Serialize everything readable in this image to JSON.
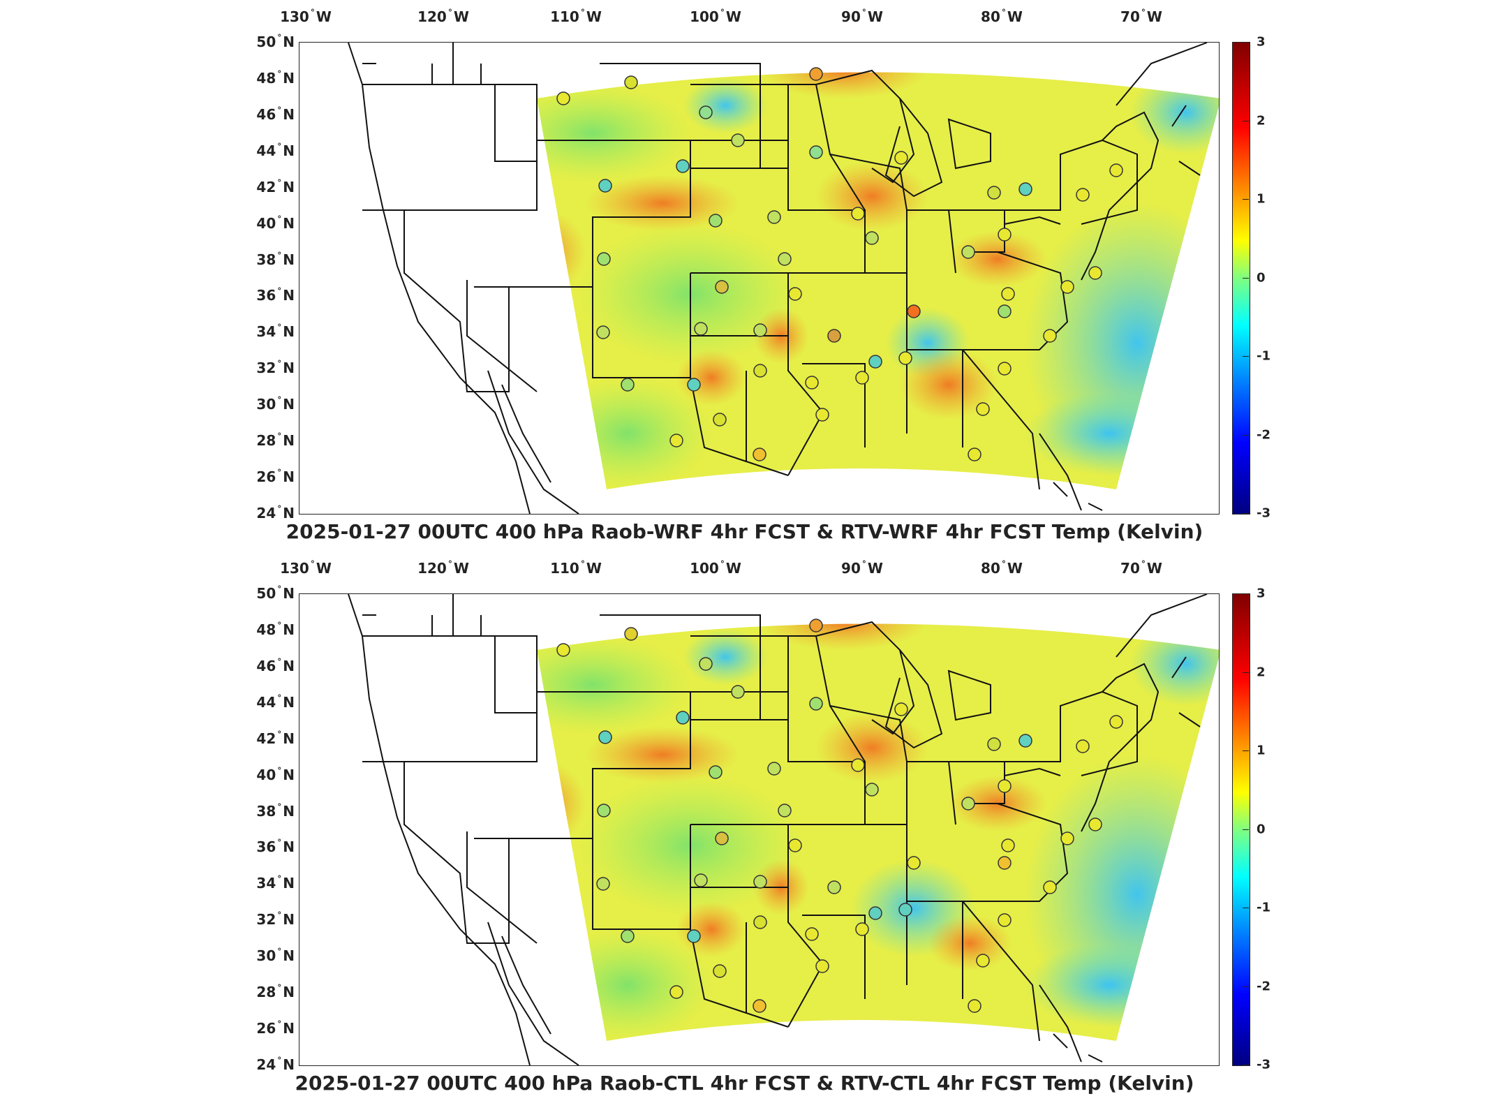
{
  "panels": [
    {
      "title": "2025-01-27 00UTC 400 hPa Raob-WRF 4hr FCST & RTV-WRF 4hr FCST Temp (Kelvin)"
    },
    {
      "title": "2025-01-27 00UTC 400 hPa Raob-CTL 4hr FCST & RTV-CTL 4hr FCST Temp (Kelvin)"
    }
  ],
  "axes": {
    "lon_labels": [
      "130",
      "120",
      "110",
      "100",
      "90",
      "80",
      "70"
    ],
    "lon_suffix": "W",
    "lat_labels": [
      "50",
      "48",
      "46",
      "44",
      "42",
      "40",
      "38",
      "36",
      "34",
      "32",
      "30",
      "28",
      "26",
      "24"
    ],
    "lat_suffix": "N",
    "deg_symbol": "°"
  },
  "colorbar": {
    "ticks": [
      "3",
      "2",
      "1",
      "0",
      "-1",
      "-2",
      "-3"
    ],
    "range": [
      -3,
      3
    ],
    "colormap": "jet"
  },
  "colors": {
    "field_base": "#e8f040",
    "field_warm": "#f0a030",
    "field_cool": "#60e0c0",
    "field_cold": "#40a0ff",
    "station_outline": "#333333"
  }
}
